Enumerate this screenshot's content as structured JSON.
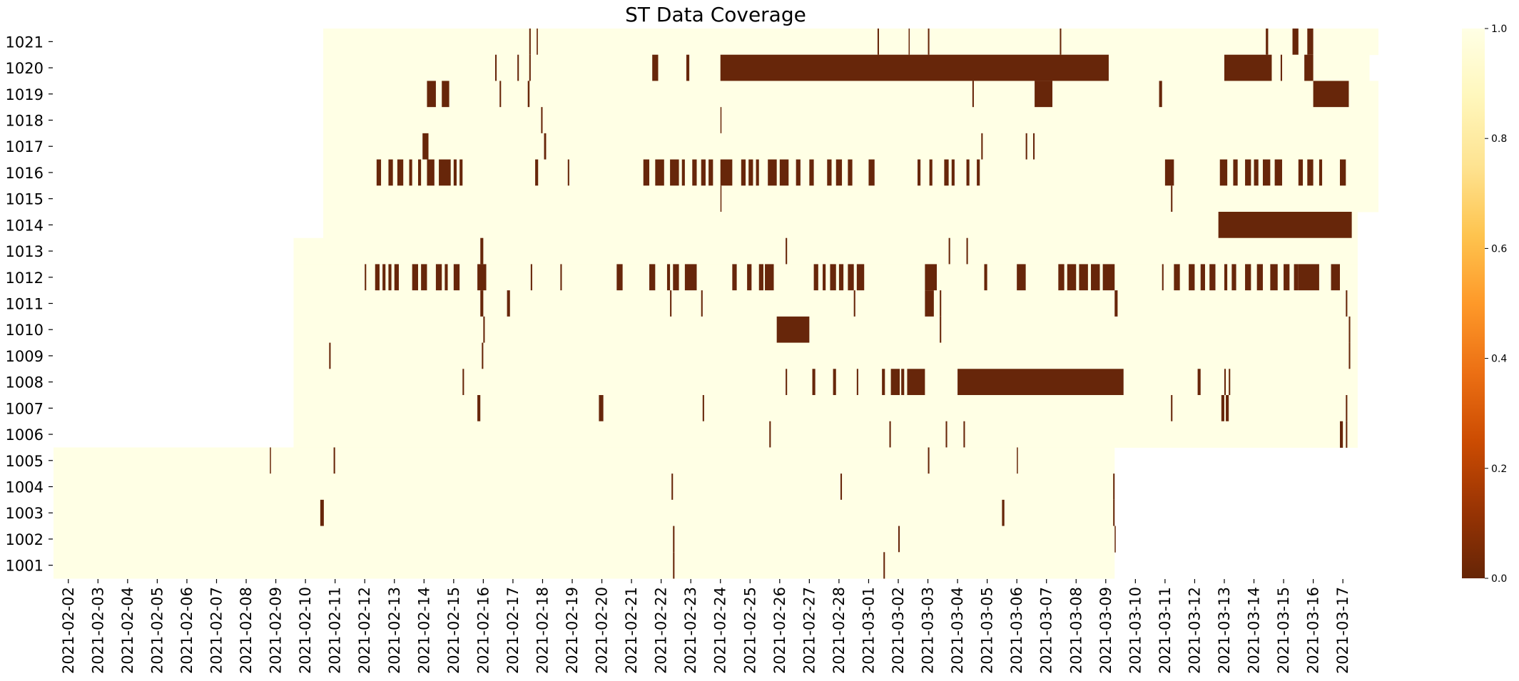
{
  "colors": {
    "missing": "#67260a",
    "present": "#ffffe5",
    "colormap": [
      "#662506",
      "#993404",
      "#cc4c02",
      "#ec7014",
      "#fe9929",
      "#fec44f",
      "#fee391",
      "#fff7bc",
      "#ffffe5"
    ]
  },
  "chart_data": {
    "type": "heatmap",
    "title": "ST Data Coverage",
    "xlabel": "",
    "ylabel": "",
    "x_tick_labels": [
      "2021-02-02",
      "2021-02-03",
      "2021-02-04",
      "2021-02-05",
      "2021-02-06",
      "2021-02-07",
      "2021-02-08",
      "2021-02-09",
      "2021-02-10",
      "2021-02-11",
      "2021-02-12",
      "2021-02-13",
      "2021-02-14",
      "2021-02-15",
      "2021-02-16",
      "2021-02-17",
      "2021-02-18",
      "2021-02-19",
      "2021-02-20",
      "2021-02-21",
      "2021-02-22",
      "2021-02-23",
      "2021-02-24",
      "2021-02-25",
      "2021-02-26",
      "2021-02-27",
      "2021-02-28",
      "2021-03-01",
      "2021-03-02",
      "2021-03-03",
      "2021-03-04",
      "2021-03-05",
      "2021-03-06",
      "2021-03-07",
      "2021-03-08",
      "2021-03-09",
      "2021-03-10",
      "2021-03-11",
      "2021-03-12",
      "2021-03-13",
      "2021-03-14",
      "2021-03-15",
      "2021-03-16",
      "2021-03-17"
    ],
    "x_range_days": [
      -0.5,
      44.2
    ],
    "colorbar": {
      "range": [
        0.0,
        1.0
      ],
      "ticks": [
        "0.0",
        "0.2",
        "0.4",
        "0.6",
        "0.8",
        "1.0"
      ]
    },
    "rows": [
      {
        "label": "1021",
        "start": 8.6,
        "end": 44.2,
        "gaps": [
          [
            15.55,
            15.6
          ],
          [
            15.8,
            15.84
          ],
          [
            27.3,
            27.35
          ],
          [
            28.35,
            28.38
          ],
          [
            29.0,
            29.05
          ],
          [
            33.45,
            33.5
          ],
          [
            40.4,
            40.48
          ],
          [
            41.3,
            41.5
          ],
          [
            41.8,
            42.0
          ]
        ]
      },
      {
        "label": "1020",
        "start": 8.6,
        "end": 43.9,
        "gaps": [
          [
            14.4,
            14.45
          ],
          [
            15.15,
            15.2
          ],
          [
            15.55,
            15.6
          ],
          [
            19.7,
            19.9
          ],
          [
            20.85,
            20.95
          ],
          [
            22.0,
            35.1
          ],
          [
            39.0,
            40.6
          ],
          [
            40.9,
            40.95
          ],
          [
            41.7,
            42.0
          ]
        ]
      },
      {
        "label": "1019",
        "start": 8.6,
        "end": 44.2,
        "gaps": [
          [
            12.1,
            12.4
          ],
          [
            12.6,
            12.85
          ],
          [
            14.55,
            14.6
          ],
          [
            15.5,
            15.56
          ],
          [
            30.5,
            30.55
          ],
          [
            32.6,
            33.2
          ],
          [
            36.8,
            36.9
          ],
          [
            42.0,
            43.2
          ]
        ]
      },
      {
        "label": "1018",
        "start": 8.6,
        "end": 44.2,
        "gaps": [
          [
            15.95,
            16.0
          ],
          [
            22.0,
            22.02
          ]
        ]
      },
      {
        "label": "1017",
        "start": 8.6,
        "end": 44.2,
        "gaps": [
          [
            11.95,
            12.15
          ],
          [
            16.05,
            16.12
          ],
          [
            30.8,
            30.85
          ],
          [
            32.3,
            32.35
          ],
          [
            32.55,
            32.6
          ]
        ]
      },
      {
        "label": "1016",
        "start": 8.6,
        "end": 44.2,
        "gaps": [
          [
            10.4,
            10.55
          ],
          [
            10.8,
            10.95
          ],
          [
            11.1,
            11.3
          ],
          [
            11.5,
            11.6
          ],
          [
            11.8,
            11.9
          ],
          [
            12.1,
            12.35
          ],
          [
            12.5,
            12.9
          ],
          [
            13.0,
            13.1
          ],
          [
            13.2,
            13.3
          ],
          [
            15.75,
            15.85
          ],
          [
            16.85,
            16.9
          ],
          [
            19.4,
            19.6
          ],
          [
            19.8,
            20.1
          ],
          [
            20.3,
            20.6
          ],
          [
            20.7,
            20.8
          ],
          [
            21.05,
            21.2
          ],
          [
            21.35,
            21.5
          ],
          [
            21.6,
            21.75
          ],
          [
            22.0,
            22.4
          ],
          [
            22.7,
            22.85
          ],
          [
            22.95,
            23.1
          ],
          [
            23.2,
            23.3
          ],
          [
            23.6,
            23.9
          ],
          [
            24.0,
            24.3
          ],
          [
            24.55,
            24.7
          ],
          [
            25.0,
            25.15
          ],
          [
            25.6,
            25.75
          ],
          [
            25.9,
            26.1
          ],
          [
            26.3,
            26.45
          ],
          [
            27.0,
            27.2
          ],
          [
            28.65,
            28.75
          ],
          [
            29.05,
            29.15
          ],
          [
            29.55,
            29.7
          ],
          [
            29.8,
            29.9
          ],
          [
            30.3,
            30.4
          ],
          [
            30.65,
            30.75
          ],
          [
            37.0,
            37.3
          ],
          [
            38.85,
            39.1
          ],
          [
            39.3,
            39.45
          ],
          [
            39.7,
            39.9
          ],
          [
            40.0,
            40.15
          ],
          [
            40.3,
            40.55
          ],
          [
            40.7,
            40.95
          ],
          [
            41.5,
            41.65
          ],
          [
            41.8,
            42.0
          ],
          [
            42.2,
            42.3
          ],
          [
            42.9,
            43.1
          ]
        ]
      },
      {
        "label": "1015",
        "start": 8.6,
        "end": 44.2,
        "gaps": [
          [
            22.0,
            22.02
          ],
          [
            37.2,
            37.25
          ]
        ]
      },
      {
        "label": "1014",
        "start": 8.6,
        "end": 43.5,
        "gaps": [
          [
            38.8,
            43.3
          ]
        ]
      },
      {
        "label": "1013",
        "start": 7.6,
        "end": 43.5,
        "gaps": [
          [
            13.9,
            14.0
          ],
          [
            24.2,
            24.25
          ],
          [
            29.7,
            29.75
          ],
          [
            30.3,
            30.35
          ]
        ]
      },
      {
        "label": "1012",
        "start": 7.6,
        "end": 43.5,
        "gaps": [
          [
            10.0,
            10.05
          ],
          [
            10.35,
            10.5
          ],
          [
            10.6,
            10.7
          ],
          [
            10.8,
            10.9
          ],
          [
            11.0,
            11.15
          ],
          [
            11.6,
            11.8
          ],
          [
            11.9,
            12.1
          ],
          [
            12.4,
            12.6
          ],
          [
            12.7,
            12.8
          ],
          [
            13.0,
            13.2
          ],
          [
            13.8,
            14.1
          ],
          [
            15.6,
            15.65
          ],
          [
            16.6,
            16.65
          ],
          [
            18.5,
            18.7
          ],
          [
            19.6,
            19.8
          ],
          [
            20.2,
            20.3
          ],
          [
            20.4,
            20.6
          ],
          [
            20.8,
            21.2
          ],
          [
            22.4,
            22.55
          ],
          [
            22.9,
            23.05
          ],
          [
            23.3,
            23.45
          ],
          [
            23.5,
            23.8
          ],
          [
            25.15,
            25.3
          ],
          [
            25.45,
            25.55
          ],
          [
            25.7,
            25.9
          ],
          [
            26.0,
            26.15
          ],
          [
            26.3,
            26.5
          ],
          [
            26.6,
            26.85
          ],
          [
            28.9,
            29.3
          ],
          [
            30.9,
            31.0
          ],
          [
            32.0,
            32.3
          ],
          [
            33.4,
            33.6
          ],
          [
            33.7,
            34.0
          ],
          [
            34.1,
            34.4
          ],
          [
            34.5,
            34.8
          ],
          [
            34.9,
            35.3
          ],
          [
            36.9,
            36.95
          ],
          [
            37.3,
            37.5
          ],
          [
            37.8,
            38.0
          ],
          [
            38.2,
            38.35
          ],
          [
            38.5,
            38.7
          ],
          [
            39.0,
            39.1
          ],
          [
            39.25,
            39.4
          ],
          [
            39.7,
            39.9
          ],
          [
            40.1,
            40.3
          ],
          [
            40.55,
            40.8
          ],
          [
            41.0,
            41.2
          ],
          [
            41.35,
            41.5
          ],
          [
            41.5,
            42.2
          ],
          [
            42.6,
            42.9
          ]
        ]
      },
      {
        "label": "1011",
        "start": 7.6,
        "end": 43.5,
        "gaps": [
          [
            13.9,
            14.0
          ],
          [
            14.8,
            14.9
          ],
          [
            20.3,
            20.35
          ],
          [
            21.35,
            21.4
          ],
          [
            26.5,
            26.55
          ],
          [
            28.9,
            29.2
          ],
          [
            29.4,
            29.45
          ],
          [
            35.3,
            35.4
          ],
          [
            43.1,
            43.15
          ]
        ]
      },
      {
        "label": "1010",
        "start": 7.6,
        "end": 43.5,
        "gaps": [
          [
            14.0,
            14.05
          ],
          [
            23.9,
            25.0
          ],
          [
            29.4,
            29.45
          ],
          [
            43.2,
            43.25
          ]
        ]
      },
      {
        "label": "1009",
        "start": 7.6,
        "end": 43.5,
        "gaps": [
          [
            8.8,
            8.85
          ],
          [
            13.95,
            14.0
          ],
          [
            43.2,
            43.25
          ]
        ]
      },
      {
        "label": "1008",
        "start": 7.6,
        "end": 43.5,
        "gaps": [
          [
            13.3,
            13.35
          ],
          [
            24.2,
            24.25
          ],
          [
            25.1,
            25.2
          ],
          [
            25.8,
            25.9
          ],
          [
            26.6,
            26.65
          ],
          [
            27.45,
            27.55
          ],
          [
            27.75,
            28.05
          ],
          [
            28.1,
            28.2
          ],
          [
            28.3,
            28.9
          ],
          [
            30.0,
            35.6
          ],
          [
            38.1,
            38.2
          ],
          [
            39.0,
            39.05
          ],
          [
            39.15,
            39.2
          ]
        ]
      },
      {
        "label": "1007",
        "start": 7.6,
        "end": 43.5,
        "gaps": [
          [
            13.8,
            13.9
          ],
          [
            17.9,
            18.05
          ],
          [
            21.4,
            21.45
          ],
          [
            37.2,
            37.25
          ],
          [
            38.9,
            39.0
          ],
          [
            39.05,
            39.15
          ],
          [
            43.1,
            43.15
          ]
        ]
      },
      {
        "label": "1006",
        "start": 7.6,
        "end": 43.5,
        "gaps": [
          [
            23.65,
            23.7
          ],
          [
            27.7,
            27.75
          ],
          [
            29.6,
            29.65
          ],
          [
            30.2,
            30.25
          ],
          [
            42.9,
            43.0
          ],
          [
            43.1,
            43.15
          ]
        ]
      },
      {
        "label": "1005",
        "start": -0.5,
        "end": 35.3,
        "gaps": [
          [
            6.8,
            6.83
          ],
          [
            8.95,
            9.0
          ],
          [
            29.0,
            29.05
          ],
          [
            32.0,
            32.03
          ]
        ]
      },
      {
        "label": "1004",
        "start": -0.5,
        "end": 35.3,
        "gaps": [
          [
            20.35,
            20.4
          ],
          [
            26.05,
            26.1
          ],
          [
            35.25,
            35.3
          ]
        ]
      },
      {
        "label": "1003",
        "start": -0.5,
        "end": 35.3,
        "gaps": [
          [
            8.5,
            8.62
          ],
          [
            31.5,
            31.58
          ],
          [
            35.25,
            35.3
          ]
        ]
      },
      {
        "label": "1002",
        "start": -0.5,
        "end": 35.3,
        "gaps": [
          [
            20.4,
            20.45
          ],
          [
            28.0,
            28.05
          ],
          [
            35.3,
            35.3
          ]
        ]
      },
      {
        "label": "1001",
        "start": -0.5,
        "end": 35.3,
        "gaps": [
          [
            20.4,
            20.45
          ],
          [
            27.5,
            27.55
          ]
        ]
      }
    ]
  }
}
